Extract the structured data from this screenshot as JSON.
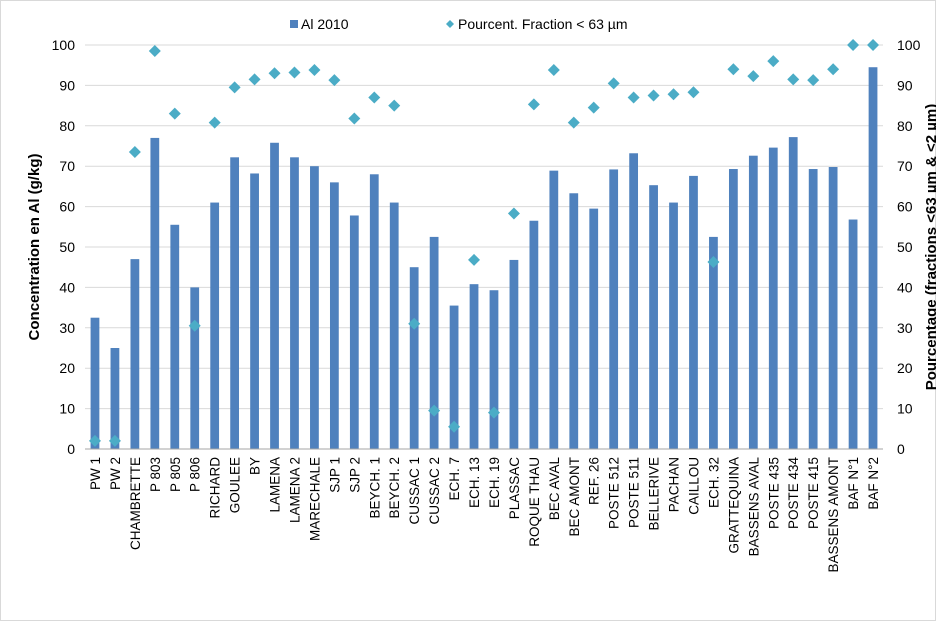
{
  "chart_data": {
    "type": "bar",
    "title": "",
    "ylabel": "Concentration en Al (g/kg)",
    "y2label": "Pourcentage (fractions <63 µm & <2 µm)",
    "ylim": [
      0,
      100
    ],
    "y2lim": [
      0,
      100
    ],
    "yticks": [
      "0",
      "10",
      "20",
      "30",
      "40",
      "50",
      "60",
      "70",
      "80",
      "90",
      "100"
    ],
    "y2ticks": [
      "0",
      "10",
      "20",
      "30",
      "40",
      "50",
      "60",
      "70",
      "80",
      "90",
      "100"
    ],
    "grid": true,
    "legend_position": "top",
    "categories": [
      "PW 1",
      "PW 2",
      "CHAMBRETTE",
      "P 803",
      "P 805",
      "P 806",
      "RICHARD",
      "GOULEE",
      "BY",
      "LAMENA",
      "LAMENA 2",
      "MARECHALE",
      "SJP 1",
      "SJP 2",
      "BEYCH. 1",
      "BEYCH. 2",
      "CUSSAC 1",
      "CUSSAC 2",
      "ECH. 7",
      "ECH. 13",
      "ECH. 19",
      "PLASSAC",
      "ROQUE THAU",
      "BEC AVAL",
      "BEC AMONT",
      "REF. 26",
      "POSTE 512",
      "POSTE 511",
      "BELLERIVE",
      "PACHAN",
      "CAILLOU",
      "ECH. 32",
      "GRATTEQUINA",
      "BASSENS AVAL",
      "POSTE 435",
      "POSTE 434",
      "POSTE 415",
      "BASSENS AMONT",
      "BAF N°1",
      "BAF N°2"
    ],
    "series": [
      {
        "name": "Al 2010",
        "type": "bar",
        "axis": "left",
        "color": "#4f81bd",
        "values": [
          32.5,
          25,
          47,
          77,
          55.5,
          40,
          61,
          72.2,
          68.2,
          75.8,
          72.2,
          70,
          66,
          57.8,
          68,
          61,
          45,
          52.5,
          35.5,
          40.8,
          39.3,
          46.8,
          56.5,
          68.9,
          63.3,
          59.5,
          69.2,
          73.2,
          65.3,
          61,
          67.6,
          52.5,
          69.3,
          72.6,
          74.6,
          77.2,
          69.3,
          69.8,
          56.8,
          94.5
        ]
      },
      {
        "name": "Pourcent. Fraction < 63 µm",
        "type": "scatter",
        "axis": "right",
        "color": "#4bacc6",
        "marker": "diamond",
        "values": [
          2,
          2,
          73.5,
          98.5,
          83,
          30.5,
          80.8,
          89.5,
          91.5,
          93,
          93.2,
          93.8,
          91.3,
          81.8,
          87,
          85,
          31,
          9.5,
          5.5,
          46.8,
          9,
          58.3,
          85.3,
          93.8,
          80.8,
          84.5,
          90.5,
          87,
          87.5,
          87.8,
          88.3,
          46.3,
          94,
          92.3,
          96,
          91.5,
          91.3,
          94,
          100,
          100
        ]
      }
    ]
  }
}
